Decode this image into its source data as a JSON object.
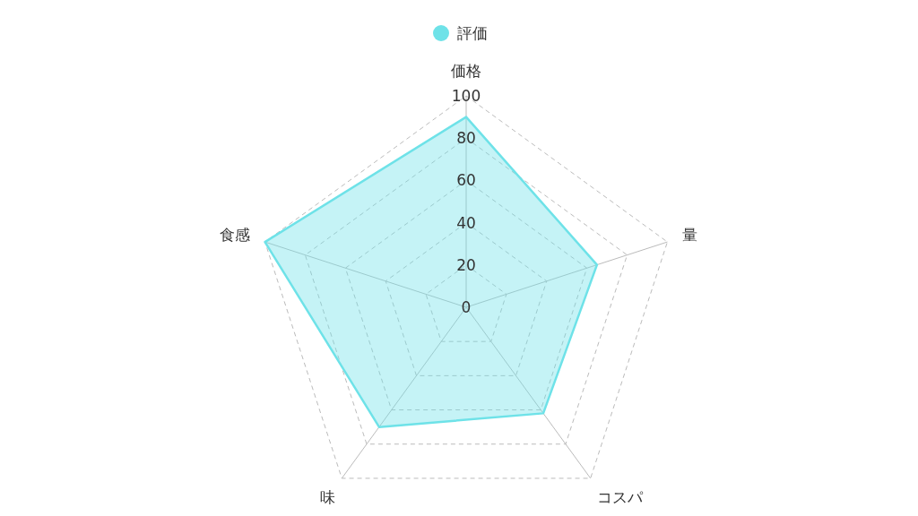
{
  "chart_data": {
    "type": "radar",
    "categories": [
      "価格",
      "量",
      "コスパ",
      "味",
      "食感"
    ],
    "series": [
      {
        "name": "評価",
        "color": "#6ee2e8",
        "values": [
          90,
          65,
          62,
          70,
          100
        ]
      }
    ],
    "ylim": [
      0,
      100
    ],
    "yticks": [
      0,
      20,
      40,
      60,
      80,
      100
    ],
    "grid": true,
    "legend": "top",
    "marker": "none"
  }
}
